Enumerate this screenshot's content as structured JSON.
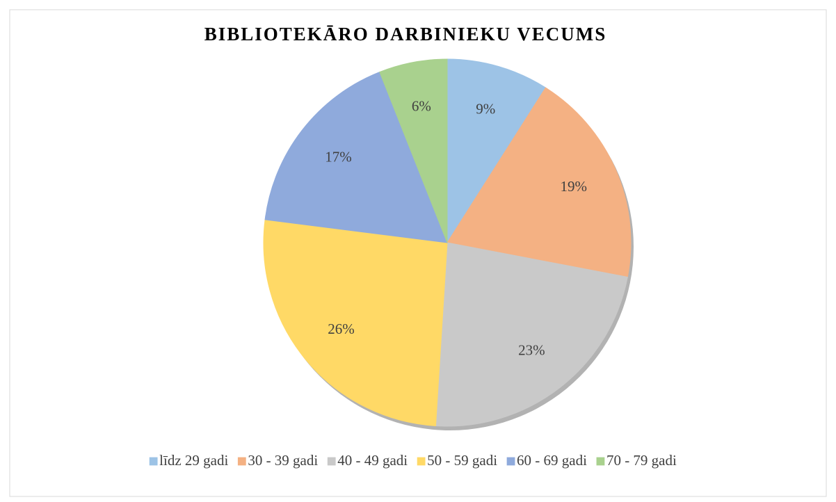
{
  "chart_data": {
    "type": "pie",
    "title": "BIBLIOTEKĀRO DARBINIEKU VECUMS",
    "categories": [
      "līdz 29 gadi",
      "30 - 39 gadi",
      "40 - 49 gadi",
      "50 - 59 gadi",
      "60 - 69 gadi",
      "70 - 79 gadi"
    ],
    "values": [
      9,
      19,
      23,
      26,
      17,
      6
    ],
    "value_labels": [
      "9%",
      "19%",
      "23%",
      "26%",
      "17%",
      "6%"
    ],
    "colors": [
      "#9dc3e6",
      "#f4b183",
      "#c9c9c9",
      "#ffd966",
      "#8faadc",
      "#a9d18e"
    ],
    "legend": "bottom"
  }
}
